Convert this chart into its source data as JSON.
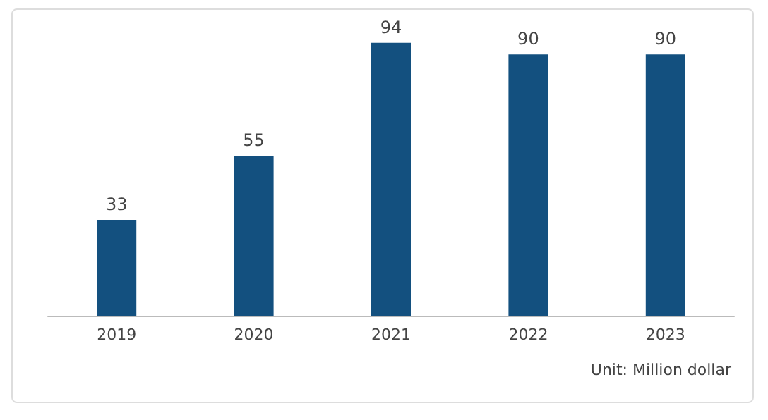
{
  "chart_data": {
    "type": "bar",
    "categories": [
      "2019",
      "2020",
      "2021",
      "2022",
      "2023"
    ],
    "values": [
      33,
      55,
      94,
      90,
      90
    ],
    "color": "#13507f",
    "data_labels": true,
    "annotations": [
      "Unit: Million dollar"
    ]
  }
}
